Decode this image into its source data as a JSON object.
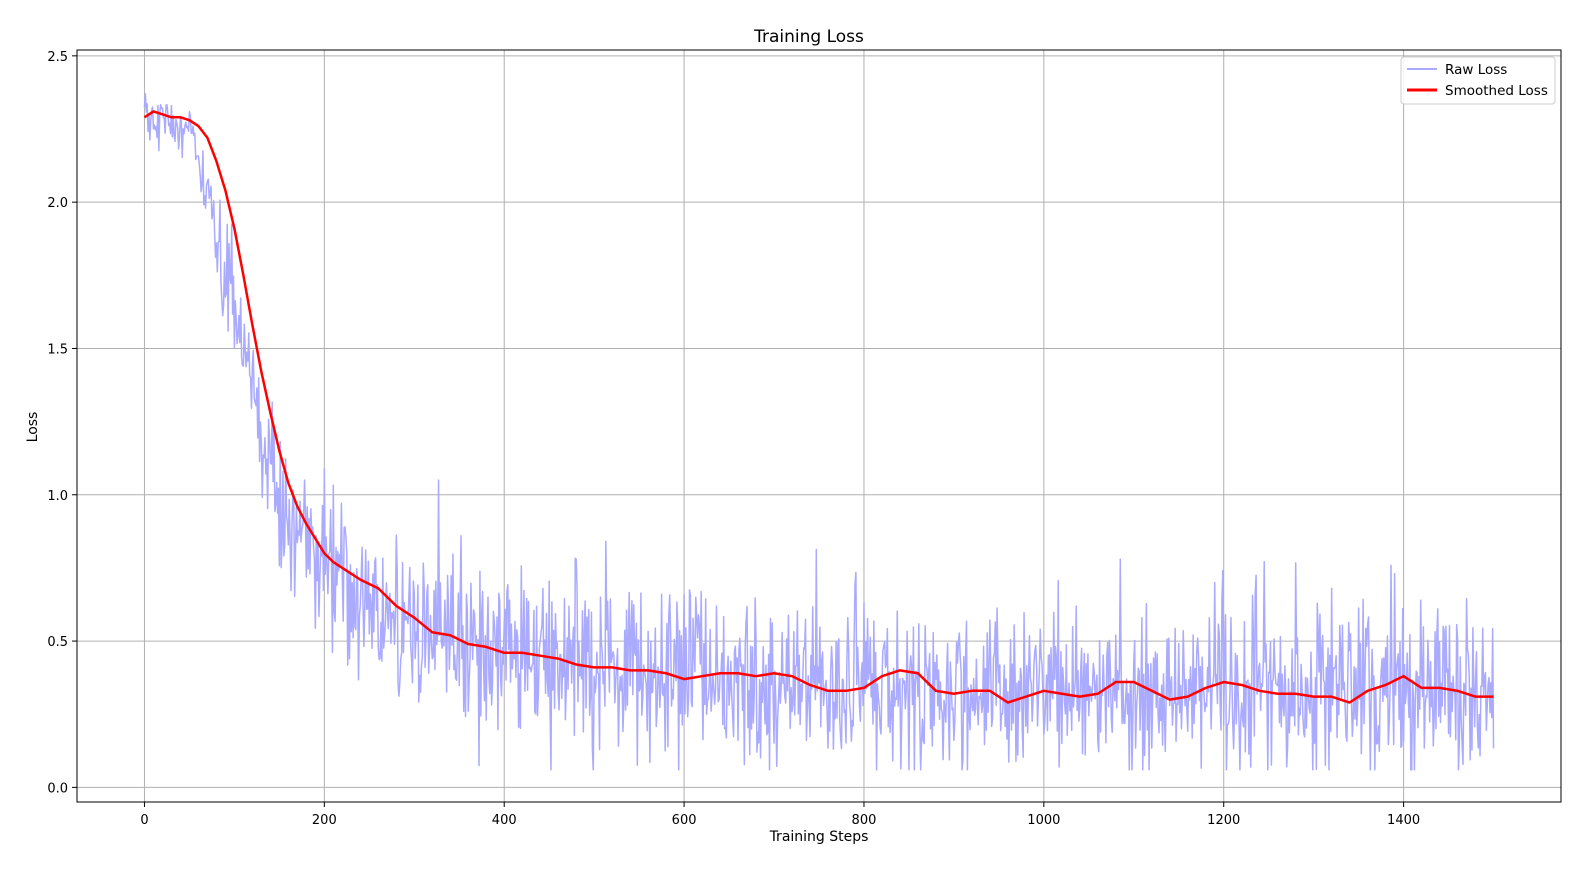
{
  "chart_data": {
    "type": "line",
    "title": "Training Loss",
    "xlabel": "Training Steps",
    "ylabel": "Loss",
    "xlim": [
      -75,
      1575
    ],
    "ylim": [
      -0.05,
      2.52
    ],
    "xticks": [
      0,
      200,
      400,
      600,
      800,
      1000,
      1200,
      1400
    ],
    "yticks": [
      0.0,
      0.5,
      1.0,
      1.5,
      2.0,
      2.5
    ],
    "grid": true,
    "legend_position": "top-right",
    "series": [
      {
        "name": "Raw Loss",
        "color": "#aaaaff",
        "style": "noisy",
        "noise": [
          0.05,
          0.05,
          0.12,
          0.12,
          0.13,
          0.13,
          0.14,
          0.14,
          0.14,
          0.14,
          0.14
        ],
        "spikes": [
          [
            178,
            1.05
          ],
          [
            327,
            1.05
          ],
          [
            352,
            0.86
          ],
          [
            480,
            0.78
          ],
          [
            1085,
            0.78
          ],
          [
            1190,
            0.7
          ],
          [
            1320,
            0.68
          ],
          [
            1390,
            0.73
          ]
        ],
        "x": [
          0,
          50,
          100,
          150,
          200,
          300,
          400,
          600,
          900,
          1200,
          1500
        ],
        "y": [
          2.3,
          2.25,
          1.6,
          0.95,
          0.75,
          0.55,
          0.45,
          0.37,
          0.33,
          0.33,
          0.32
        ]
      },
      {
        "name": "Smoothed Loss",
        "color": "#ff0000",
        "style": "line",
        "x": [
          0,
          10,
          20,
          30,
          40,
          50,
          60,
          70,
          80,
          90,
          100,
          110,
          120,
          130,
          140,
          150,
          160,
          170,
          180,
          190,
          200,
          210,
          220,
          240,
          260,
          280,
          300,
          320,
          340,
          360,
          380,
          400,
          420,
          440,
          460,
          480,
          500,
          520,
          540,
          560,
          580,
          600,
          620,
          640,
          660,
          680,
          700,
          720,
          740,
          760,
          780,
          800,
          820,
          840,
          860,
          880,
          900,
          920,
          940,
          960,
          980,
          1000,
          1020,
          1040,
          1060,
          1080,
          1100,
          1120,
          1140,
          1160,
          1180,
          1200,
          1220,
          1240,
          1260,
          1280,
          1300,
          1320,
          1340,
          1360,
          1380,
          1400,
          1420,
          1440,
          1460,
          1480,
          1500
        ],
        "y": [
          2.29,
          2.31,
          2.3,
          2.29,
          2.29,
          2.28,
          2.26,
          2.22,
          2.14,
          2.04,
          1.91,
          1.75,
          1.58,
          1.42,
          1.28,
          1.15,
          1.04,
          0.96,
          0.9,
          0.85,
          0.8,
          0.77,
          0.75,
          0.71,
          0.68,
          0.62,
          0.58,
          0.53,
          0.52,
          0.49,
          0.48,
          0.46,
          0.46,
          0.45,
          0.44,
          0.42,
          0.41,
          0.41,
          0.4,
          0.4,
          0.39,
          0.37,
          0.38,
          0.39,
          0.39,
          0.38,
          0.39,
          0.38,
          0.35,
          0.33,
          0.33,
          0.34,
          0.38,
          0.4,
          0.39,
          0.33,
          0.32,
          0.33,
          0.33,
          0.29,
          0.31,
          0.33,
          0.32,
          0.31,
          0.32,
          0.36,
          0.36,
          0.33,
          0.3,
          0.31,
          0.34,
          0.36,
          0.35,
          0.33,
          0.32,
          0.32,
          0.31,
          0.31,
          0.29,
          0.33,
          0.35,
          0.38,
          0.34,
          0.34,
          0.33,
          0.31,
          0.31
        ]
      }
    ]
  }
}
